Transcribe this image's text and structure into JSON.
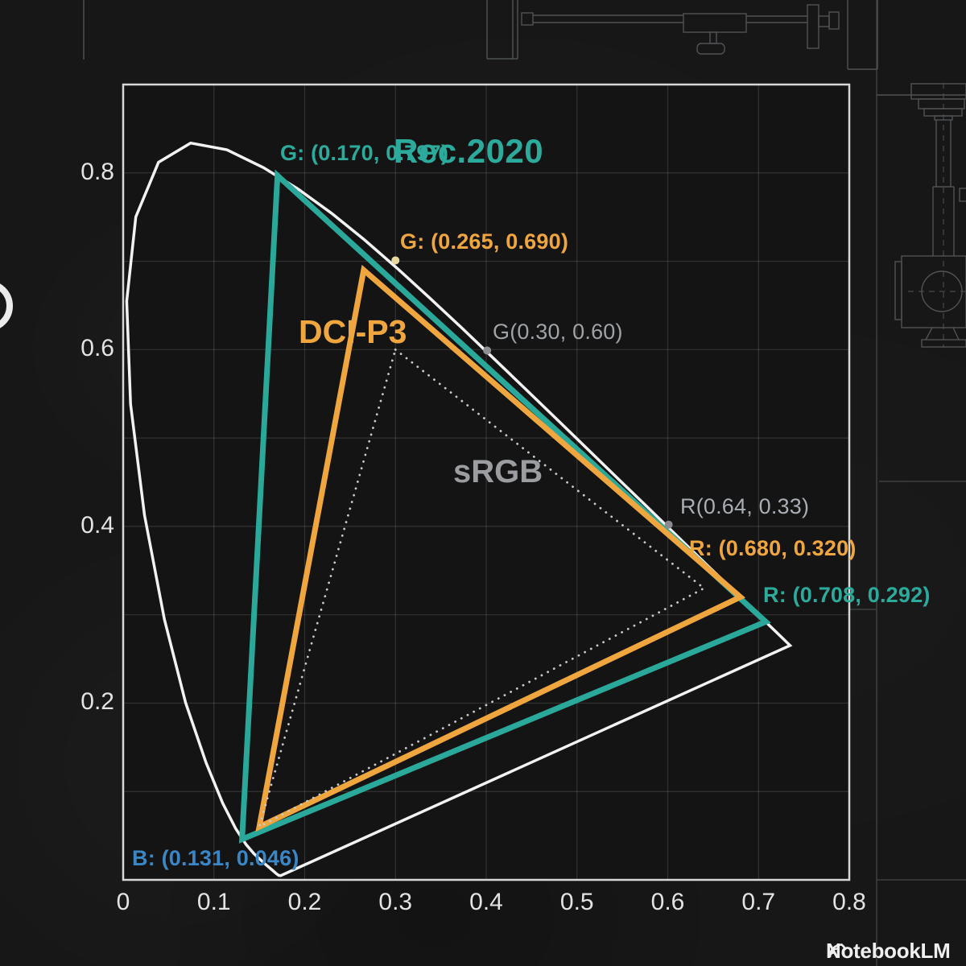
{
  "watermark": {
    "brand": "NotebookLM"
  },
  "chart_data": {
    "type": "line",
    "description_visible_text_only": "",
    "xlim": [
      0,
      0.8
    ],
    "ylim": [
      0,
      0.9
    ],
    "grid": true,
    "x_ticks": [
      {
        "value": 0.0,
        "label": "0"
      },
      {
        "value": 0.1,
        "label": "0.1"
      },
      {
        "value": 0.2,
        "label": "0.2"
      },
      {
        "value": 0.3,
        "label": "0.3"
      },
      {
        "value": 0.4,
        "label": "0.4"
      },
      {
        "value": 0.5,
        "label": "0.5"
      },
      {
        "value": 0.6,
        "label": "0.6"
      },
      {
        "value": 0.7,
        "label": "0.7"
      },
      {
        "value": 0.8,
        "label": "0.8"
      }
    ],
    "y_ticks": [
      {
        "value": 0.2,
        "label": "0.2"
      },
      {
        "value": 0.4,
        "label": "0.4"
      },
      {
        "value": 0.6,
        "label": "0.6"
      },
      {
        "value": 0.8,
        "label": "0.8"
      }
    ],
    "series": [
      {
        "name": "spectral-locus",
        "color": "#f2f2f2",
        "style": "solid",
        "width": 3.5,
        "closed": true,
        "points": [
          [
            0.1741,
            0.005
          ],
          [
            0.1733,
            0.0048
          ],
          [
            0.1714,
            0.0051
          ],
          [
            0.1689,
            0.0069
          ],
          [
            0.1644,
            0.0109
          ],
          [
            0.1566,
            0.0177
          ],
          [
            0.144,
            0.0297
          ],
          [
            0.1355,
            0.0399
          ],
          [
            0.1241,
            0.0578
          ],
          [
            0.1096,
            0.0868
          ],
          [
            0.0913,
            0.1327
          ],
          [
            0.0687,
            0.2007
          ],
          [
            0.0454,
            0.295
          ],
          [
            0.0235,
            0.4127
          ],
          [
            0.0082,
            0.5384
          ],
          [
            0.0039,
            0.6548
          ],
          [
            0.0139,
            0.7502
          ],
          [
            0.0389,
            0.812
          ],
          [
            0.0743,
            0.8338
          ],
          [
            0.1142,
            0.8262
          ],
          [
            0.1547,
            0.8059
          ],
          [
            0.1929,
            0.7816
          ],
          [
            0.2296,
            0.7543
          ],
          [
            0.2658,
            0.7243
          ],
          [
            0.3016,
            0.6923
          ],
          [
            0.3373,
            0.6589
          ],
          [
            0.3731,
            0.6245
          ],
          [
            0.4087,
            0.5896
          ],
          [
            0.4441,
            0.5547
          ],
          [
            0.4788,
            0.5202
          ],
          [
            0.5125,
            0.4866
          ],
          [
            0.5448,
            0.4544
          ],
          [
            0.5752,
            0.4242
          ],
          [
            0.6029,
            0.3965
          ],
          [
            0.627,
            0.3725
          ],
          [
            0.6482,
            0.3514
          ],
          [
            0.6658,
            0.334
          ],
          [
            0.6801,
            0.3197
          ],
          [
            0.6915,
            0.3083
          ],
          [
            0.7006,
            0.2993
          ],
          [
            0.714,
            0.2859
          ],
          [
            0.726,
            0.274
          ],
          [
            0.7347,
            0.2653
          ]
        ]
      },
      {
        "name": "Rec.2020",
        "color": "#2aa89a",
        "style": "solid",
        "width": 7,
        "closed": true,
        "points": [
          [
            0.17,
            0.797
          ],
          [
            0.708,
            0.292
          ],
          [
            0.131,
            0.046
          ]
        ]
      },
      {
        "name": "DCI-P3",
        "color": "#f0a63e",
        "style": "solid",
        "width": 7,
        "closed": true,
        "points": [
          [
            0.265,
            0.69
          ],
          [
            0.68,
            0.32
          ],
          [
            0.15,
            0.06
          ]
        ]
      },
      {
        "name": "sRGB",
        "color": "#c6c8ca",
        "style": "dotted",
        "width": 2.8,
        "closed": true,
        "points": [
          [
            0.3,
            0.6
          ],
          [
            0.64,
            0.33
          ],
          [
            0.15,
            0.06
          ]
        ]
      }
    ],
    "markers": [
      {
        "x": 0.3,
        "y": 0.701,
        "r": 5,
        "color": "#e6d99c"
      },
      {
        "x": 0.401,
        "y": 0.599,
        "r": 5,
        "color": "#8f9093"
      },
      {
        "x": 0.601,
        "y": 0.402,
        "r": 5,
        "color": "#8a8b8e"
      }
    ],
    "annotations": {
      "rec2020_g": "G: (0.170, 0.797)",
      "rec2020_title": "Rec.2020",
      "dcip3_g": "G: (0.265, 0.690)",
      "dcip3_title": "DCI-P3",
      "srgb_g": "G(0.30, 0.60)",
      "srgb_title": "sRGB",
      "srgb_r": "R(0.64, 0.33)",
      "dcip3_r": "R: (0.680, 0.320)",
      "rec2020_r": "R: (0.708, 0.292)",
      "rec2020_b": "B: (0.131, 0.046)"
    }
  }
}
